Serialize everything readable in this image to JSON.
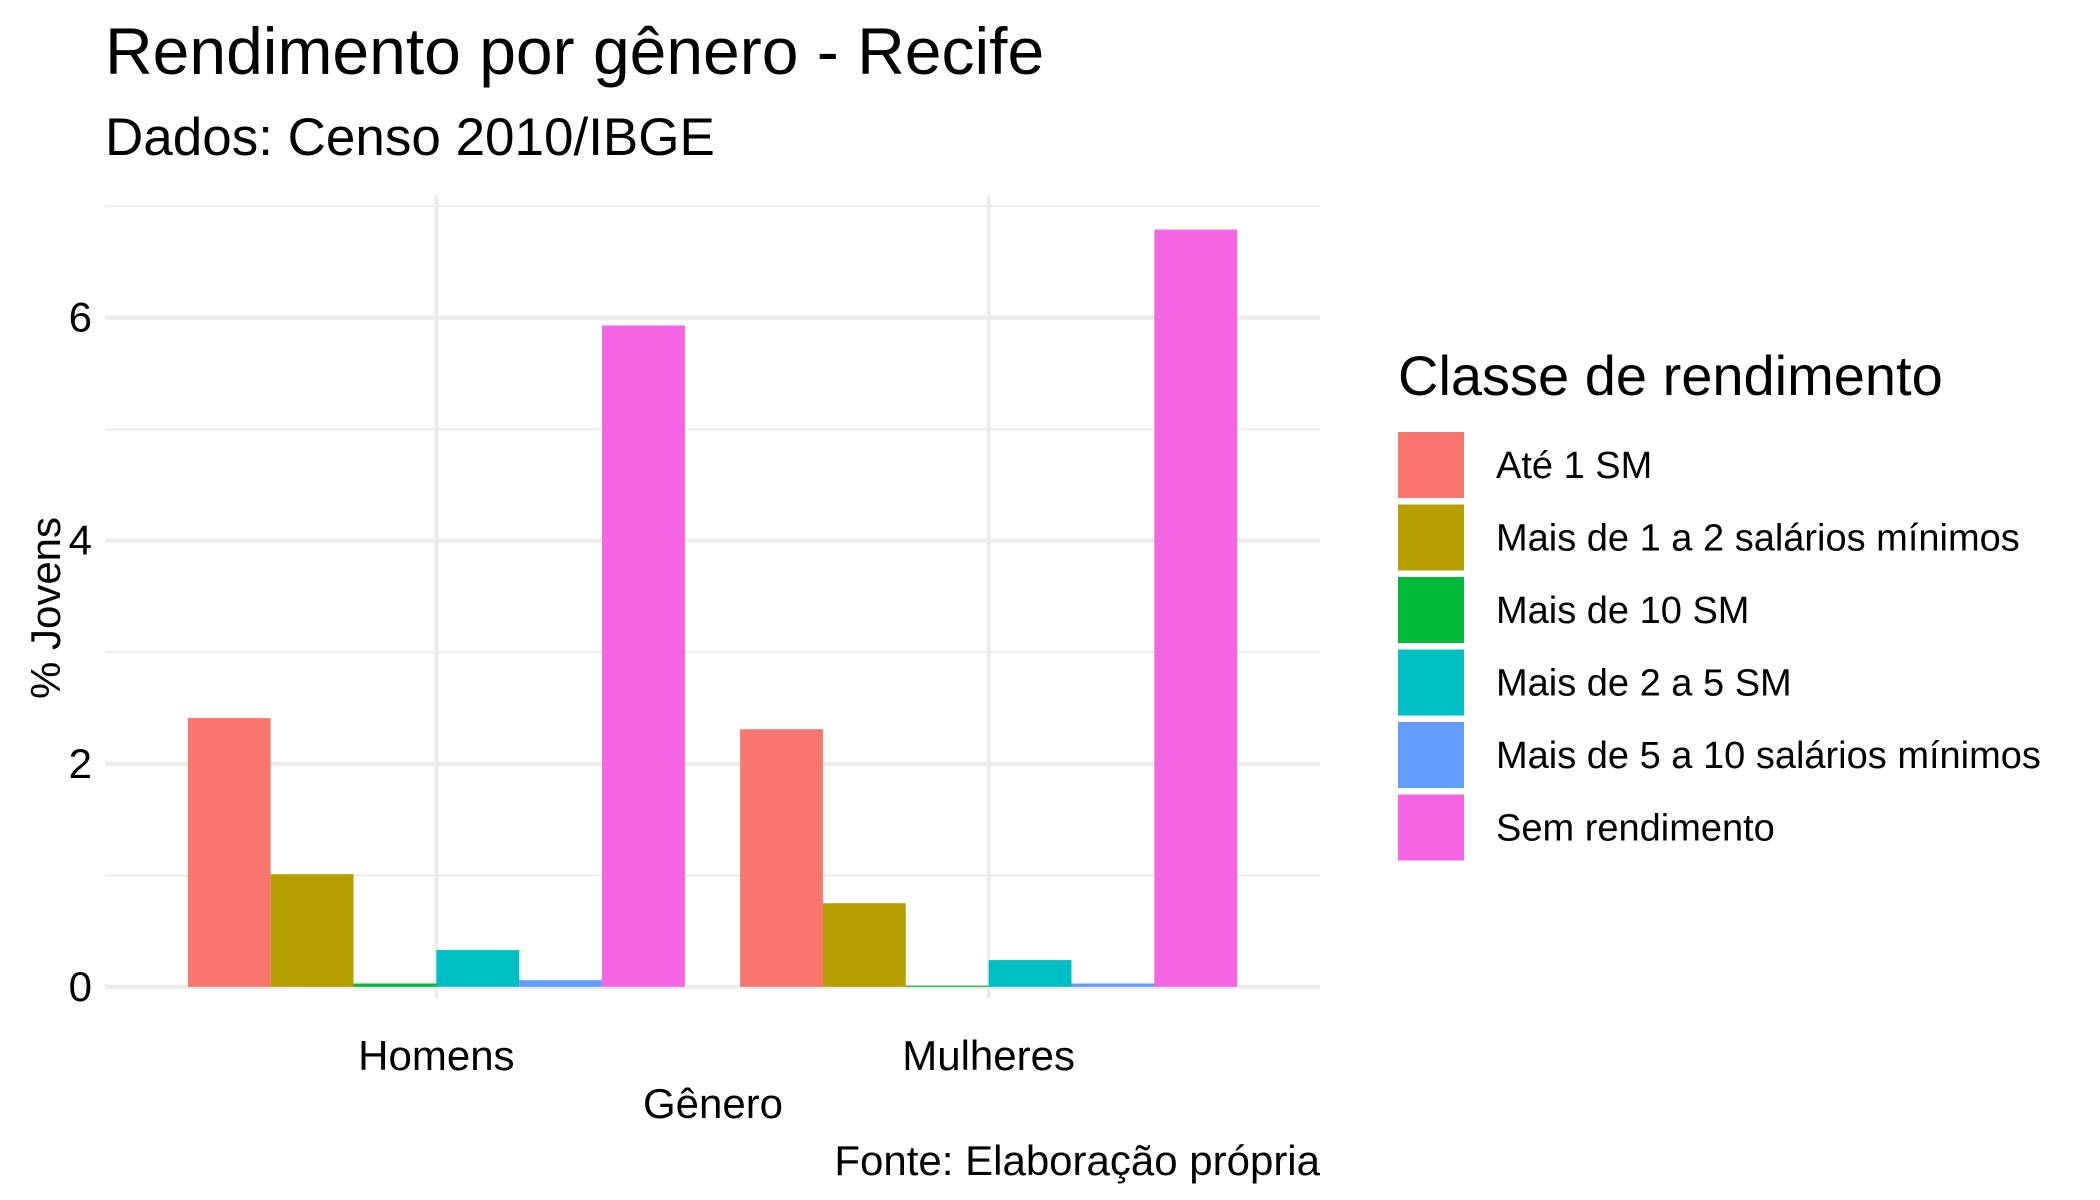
{
  "chart_data": {
    "type": "bar",
    "title": "Rendimento por gênero - Recife",
    "subtitle": "Dados: Censo 2010/IBGE",
    "xlabel": "Gênero",
    "ylabel": "% Jovens",
    "caption": "Fonte: Elaboração própria",
    "categories": [
      "Homens",
      "Mulheres"
    ],
    "ylim": [
      -0.1,
      7.1
    ],
    "yticks": [
      0,
      2,
      4,
      6
    ],
    "grid": true,
    "legend": {
      "title": "Classe de rendimento",
      "position": "right"
    },
    "series": [
      {
        "name": "Até 1 SM",
        "color": "#F8766D",
        "values": [
          2.41,
          2.31
        ]
      },
      {
        "name": "Mais de 1 a 2 salários mínimos",
        "color": "#B79F00",
        "values": [
          1.01,
          0.75
        ]
      },
      {
        "name": "Mais de 10 SM",
        "color": "#00BA38",
        "values": [
          0.03,
          0.01
        ]
      },
      {
        "name": "Mais de 2 a 5 SM",
        "color": "#00BFC4",
        "values": [
          0.33,
          0.24
        ]
      },
      {
        "name": "Mais de 5 a 10 salários mínimos",
        "color": "#619CFF",
        "values": [
          0.06,
          0.03
        ]
      },
      {
        "name": "Sem rendimento",
        "color": "#F564E3",
        "values": [
          5.93,
          6.79
        ]
      }
    ]
  }
}
